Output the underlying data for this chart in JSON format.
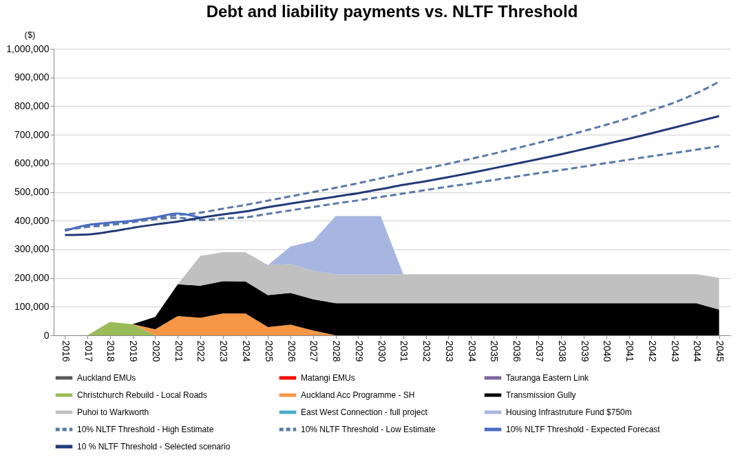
{
  "chart_data": {
    "type": "area",
    "stacked": true,
    "title": "Debt and liability payments vs. NLTF Threshold",
    "ylabel": "($)",
    "categories": [
      "2016",
      "2017",
      "2018",
      "2019",
      "2020",
      "2021",
      "2022",
      "2023",
      "2024",
      "2025",
      "2026",
      "2027",
      "2028",
      "2029",
      "2030",
      "2031",
      "2032",
      "2033",
      "2034",
      "2035",
      "2036",
      "2037",
      "2038",
      "2039",
      "2040",
      "2041",
      "2042",
      "2043",
      "2044",
      "2045"
    ],
    "ylim": [
      0,
      1000000
    ],
    "yticks": [
      0,
      {
        "value": 100000,
        "label": "100,000"
      },
      {
        "value": 200000,
        "label": "200,000"
      },
      {
        "value": 300000,
        "label": "300,000"
      },
      {
        "value": 400000,
        "label": "400,000"
      },
      {
        "value": 500000,
        "label": "500,000"
      },
      {
        "value": 600000,
        "label": "600,000"
      },
      {
        "value": 700000,
        "label": "700,000"
      },
      {
        "value": 800000,
        "label": "800,000"
      },
      {
        "value": 900000,
        "label": "900,000"
      },
      {
        "value": 1000000,
        "label": "1,000,000"
      }
    ],
    "grid": "y",
    "legend": "bottom",
    "series": [
      {
        "name": "Auckland EMUs",
        "color": "#595959",
        "values": [
          null,
          null,
          null,
          null,
          null,
          null,
          null,
          null,
          null,
          null,
          null,
          null,
          null,
          null,
          null,
          null,
          null,
          null,
          null,
          null,
          null,
          null,
          null,
          null,
          null,
          null,
          null,
          null,
          null,
          null
        ]
      },
      {
        "name": "Matangi EMUs",
        "color": "#ff0000",
        "values": [
          null,
          null,
          null,
          null,
          null,
          null,
          null,
          null,
          null,
          null,
          null,
          null,
          null,
          null,
          null,
          null,
          null,
          null,
          null,
          null,
          null,
          null,
          null,
          null,
          null,
          null,
          null,
          null,
          null,
          null
        ]
      },
      {
        "name": "Tauranga Eastern Link",
        "color": "#8064a2",
        "values": [
          null,
          null,
          null,
          null,
          null,
          null,
          null,
          null,
          null,
          null,
          null,
          null,
          null,
          null,
          null,
          null,
          null,
          null,
          null,
          null,
          null,
          null,
          null,
          null,
          null,
          null,
          null,
          null,
          null,
          null
        ]
      },
      {
        "name": "Christchurch Rebuild - Local Roads",
        "color": "#9bbb59",
        "values": [
          0,
          0,
          47000,
          39000,
          0,
          0,
          0,
          0,
          0,
          0,
          0,
          0,
          0,
          0,
          0,
          0,
          0,
          0,
          0,
          0,
          0,
          0,
          0,
          0,
          0,
          0,
          0,
          0,
          0,
          0
        ]
      },
      {
        "name": "Auckland Acc Programme - SH",
        "color": "#f79646",
        "values": [
          0,
          0,
          0,
          0,
          21000,
          67000,
          61000,
          76000,
          76000,
          29000,
          37000,
          17000,
          0,
          0,
          0,
          0,
          0,
          0,
          0,
          0,
          0,
          0,
          0,
          0,
          0,
          0,
          0,
          0,
          0,
          0
        ]
      },
      {
        "name": "Transmission Gully",
        "color": "#000000",
        "values": [
          0,
          0,
          0,
          0,
          43000,
          111000,
          112000,
          113000,
          112000,
          111000,
          111000,
          109000,
          112000,
          112000,
          112000,
          112000,
          112000,
          112000,
          112000,
          112000,
          112000,
          112000,
          112000,
          112000,
          112000,
          112000,
          112000,
          112000,
          112000,
          90000
        ]
      },
      {
        "name": "Puhoi to Warkworth",
        "color": "#c0c0c0",
        "values": [
          0,
          0,
          0,
          0,
          0,
          0,
          104000,
          101000,
          102000,
          105000,
          100000,
          100000,
          100000,
          100000,
          100000,
          101000,
          101000,
          101000,
          101000,
          101000,
          101000,
          101000,
          101000,
          101000,
          101000,
          101000,
          101000,
          101000,
          101000,
          111000
        ]
      },
      {
        "name": "East West Connection - full project",
        "color": "#4bacc6",
        "values": [
          null,
          null,
          null,
          null,
          null,
          null,
          null,
          null,
          null,
          null,
          null,
          null,
          null,
          null,
          null,
          null,
          null,
          null,
          null,
          null,
          null,
          null,
          null,
          null,
          null,
          null,
          null,
          null,
          null,
          null
        ]
      },
      {
        "name": "Housing Infrastruture Fund $750m",
        "color": "#a6b6e0",
        "values": [
          0,
          0,
          0,
          0,
          0,
          0,
          0,
          0,
          0,
          0,
          62000,
          103000,
          204000,
          204000,
          204000,
          0,
          0,
          0,
          0,
          0,
          0,
          0,
          0,
          0,
          0,
          0,
          0,
          0,
          0,
          0
        ]
      },
      {
        "name": "10% NLTF Threshold - High Estimate",
        "type": "line",
        "line_style": "dashed",
        "color": "#5a78a8",
        "values": [
          368000,
          380000,
          390000,
          400000,
          410000,
          420000,
          428000,
          442000,
          455000,
          470000,
          485000,
          500000,
          515000,
          531000,
          548000,
          565000,
          582000,
          599000,
          616000,
          634000,
          653000,
          672000,
          692000,
          713000,
          735000,
          758000,
          785000,
          812000,
          845000,
          885000
        ]
      },
      {
        "name": "10% NLTF Threshold - Low Estimate",
        "type": "line",
        "line_style": "dashed",
        "color": "#5a78a8",
        "values": [
          368000,
          378000,
          385000,
          395000,
          405000,
          410000,
          402000,
          408000,
          412000,
          424000,
          436000,
          448000,
          460000,
          471000,
          483000,
          495000,
          507000,
          519000,
          530000,
          542000,
          554000,
          566000,
          577000,
          589000,
          601000,
          613000,
          625000,
          636000,
          648000,
          660000
        ]
      },
      {
        "name": "10% NLTF Threshold - Expected Forecast",
        "type": "line",
        "line_style": "solid",
        "color": "#4a6bc4",
        "values": [
          365000,
          385000,
          393000,
          400000,
          412000,
          425000,
          410000,
          null,
          null,
          null,
          null,
          null,
          null,
          null,
          null,
          null,
          null,
          null,
          null,
          null,
          null,
          null,
          null,
          null,
          null,
          null,
          null,
          null,
          null,
          null
        ]
      },
      {
        "name": "10 % NLTF Threshold - Selected scenario",
        "type": "line",
        "line_style": "solid",
        "color": "#1f3a78",
        "values": [
          350000,
          352000,
          362000,
          375000,
          387000,
          397000,
          410000,
          422000,
          432000,
          447000,
          460000,
          472000,
          484000,
          496000,
          510000,
          525000,
          538000,
          552000,
          567000,
          583000,
          599000,
          615000,
          632000,
          650000,
          668000,
          686000,
          705000,
          725000,
          745000,
          765000
        ]
      }
    ]
  }
}
